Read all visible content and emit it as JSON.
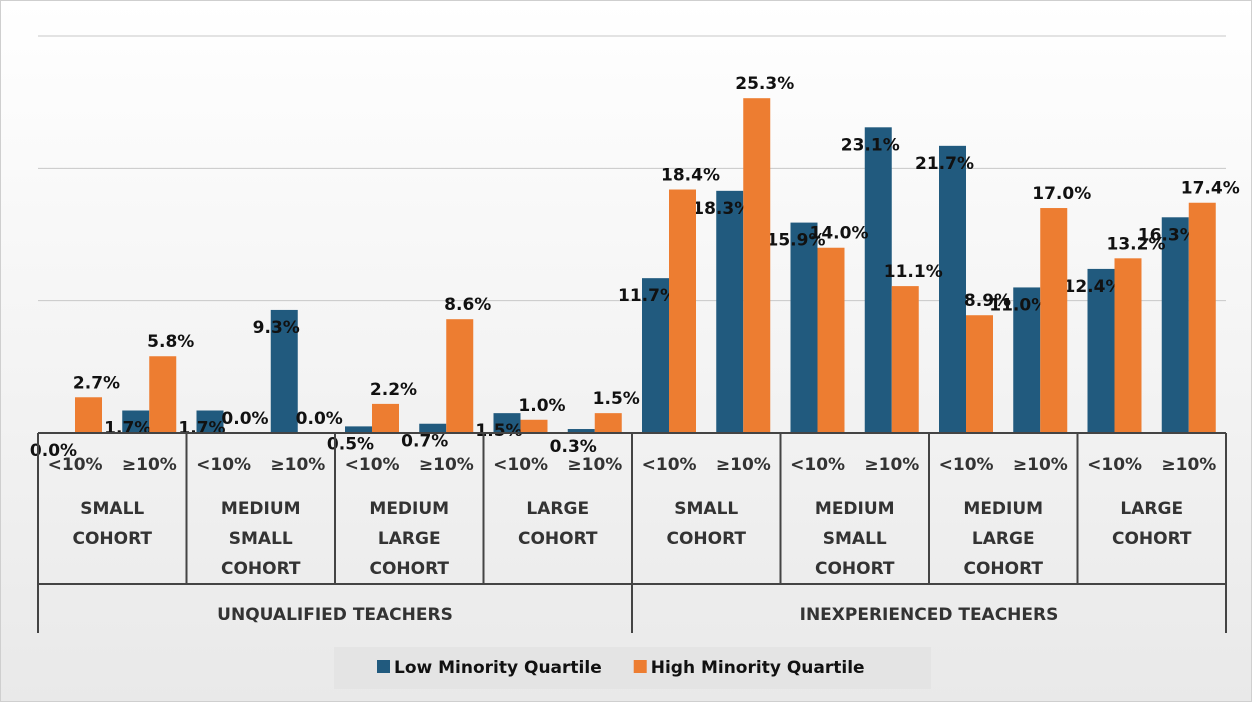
{
  "chart_data": {
    "type": "bar",
    "categories": [
      "<10%",
      "≥10%",
      "<10%",
      "≥10%",
      "<10%",
      "≥10%",
      "<10%",
      "≥10%",
      "<10%",
      "≥10%",
      "<10%",
      "≥10%",
      "<10%",
      "≥10%",
      "<10%",
      "≥10%"
    ],
    "category_groups": [
      "SMALL COHORT",
      "MEDIUM SMALL COHORT",
      "MEDIUM LARGE COHORT",
      "LARGE COHORT",
      "SMALL COHORT",
      "MEDIUM SMALL COHORT",
      "MEDIUM LARGE COHORT",
      "LARGE COHORT"
    ],
    "super_groups": [
      "UNQUALIFIED TEACHERS",
      "INEXPERIENCED TEACHERS"
    ],
    "series": [
      {
        "name": "Low Minority Quartile",
        "color": "#215a7e",
        "values": [
          0.0,
          1.7,
          1.7,
          9.3,
          0.5,
          0.7,
          1.5,
          0.3,
          11.7,
          18.3,
          15.9,
          23.1,
          21.7,
          11.0,
          12.4,
          16.3
        ],
        "value_labels": [
          "0.0%",
          "1.7%",
          "1.7%",
          "9.3%",
          "0.5%",
          "0.7%",
          "1.5%",
          "0.3%",
          "11.7%",
          "18.3%",
          "15.9%",
          "23.1%",
          "21.7%",
          "11.0%",
          "12.4%",
          "16.3%"
        ]
      },
      {
        "name": "High Minority Quartile",
        "color": "#ed7d31",
        "values": [
          2.7,
          5.8,
          0.0,
          0.0,
          2.2,
          8.6,
          1.0,
          1.5,
          18.4,
          25.3,
          14.0,
          11.1,
          8.9,
          17.0,
          13.2,
          17.4
        ],
        "value_labels": [
          "2.7%",
          "5.8%",
          "0.0%",
          "0.0%",
          "2.2%",
          "8.6%",
          "1.0%",
          "1.5%",
          "18.4%",
          "25.3%",
          "14.0%",
          "11.1%",
          "8.9%",
          "17.0%",
          "13.2%",
          "17.4%"
        ]
      }
    ],
    "ylim": [
      0,
      30
    ],
    "yticks": [
      0,
      10,
      20,
      30
    ],
    "grid": true,
    "legend": "bottom"
  }
}
